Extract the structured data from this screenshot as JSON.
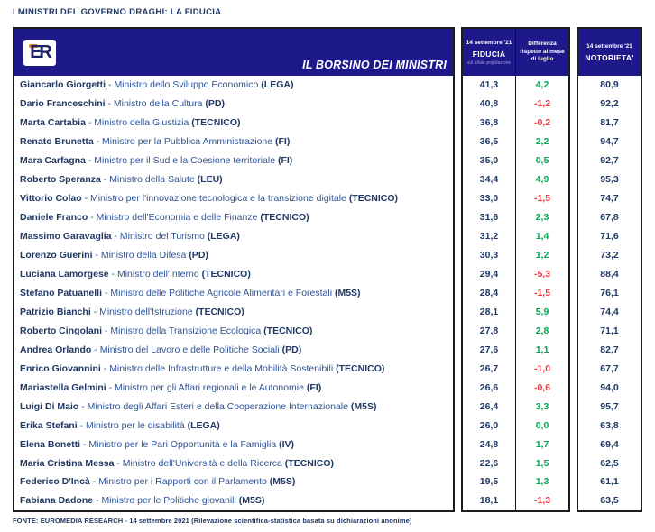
{
  "title": "I MINISTRI DEL GOVERNO DRAGHI: LA FIDUCIA",
  "header": {
    "logo_text": "ER",
    "banner_label": "IL BORSINO DEI MINISTRI",
    "fiducia_date": "14 settembre '21",
    "fiducia_label": "FIDUCIA",
    "fiducia_sub": "sul totale popolazione",
    "differenza_label": "Differenza rispetto al mese di luglio",
    "notorieta_date": "14 settembre '21",
    "notorieta_label": "NOTORIETA'"
  },
  "footer": "FONTE: EUROMEDIA RESEARCH - 14 settembre 2021 (Rilevazione scientifica-statistica basata su dichiarazioni anonime)",
  "colors": {
    "navy_header": "#1E198B",
    "text_dark": "#1F3864",
    "text_role": "#2E5496",
    "positive_green": "#00A650",
    "negative_red": "#EE3D45",
    "logo_orange": "#E87722",
    "border": "#1c1c1c"
  },
  "chart_data": {
    "type": "table",
    "title": "I MINISTRI DEL GOVERNO DRAGHI: LA FIDUCIA",
    "columns": [
      "Ministro",
      "14 settembre '21 FIDUCIA sul totale popolazione",
      "Differenza rispetto al mese di luglio",
      "14 settembre '21 NOTORIETA'"
    ],
    "rows": [
      {
        "name": "Giancarlo Giorgetti",
        "role": "Ministro dello Sviluppo Economico",
        "party": "LEGA",
        "fiducia": "41,3",
        "differenza": "4,2",
        "notorieta": "80,9"
      },
      {
        "name": "Dario Franceschini",
        "role": "Ministro della Cultura",
        "party": "PD",
        "fiducia": "40,8",
        "differenza": "-1,2",
        "notorieta": "92,2"
      },
      {
        "name": "Marta Cartabia",
        "role": "Ministro della Giustizia",
        "party": "TECNICO",
        "fiducia": "36,8",
        "differenza": "-0,2",
        "notorieta": "81,7"
      },
      {
        "name": "Renato Brunetta",
        "role": "Ministro per la Pubblica Amministrazione",
        "party": "FI",
        "fiducia": "36,5",
        "differenza": "2,2",
        "notorieta": "94,7"
      },
      {
        "name": "Mara Carfagna",
        "role": "Ministro per il Sud e la Coesione territoriale",
        "party": "FI",
        "fiducia": "35,0",
        "differenza": "0,5",
        "notorieta": "92,7"
      },
      {
        "name": "Roberto Speranza",
        "role": "Ministro della Salute",
        "party": "LEU",
        "fiducia": "34,4",
        "differenza": "4,9",
        "notorieta": "95,3"
      },
      {
        "name": "Vittorio Colao",
        "role": "Ministro per l'innovazione tecnologica e la transizione digitale",
        "party": "TECNICO",
        "fiducia": "33,0",
        "differenza": "-1,5",
        "notorieta": "74,7"
      },
      {
        "name": "Daniele Franco",
        "role": "Ministro dell'Economia e delle Finanze",
        "party": "TECNICO",
        "fiducia": "31,6",
        "differenza": "2,3",
        "notorieta": "67,8"
      },
      {
        "name": "Massimo Garavaglia",
        "role": "Ministro del Turismo",
        "party": "LEGA",
        "fiducia": "31,2",
        "differenza": "1,4",
        "notorieta": "71,6"
      },
      {
        "name": "Lorenzo Guerini",
        "role": "Ministro della Difesa",
        "party": "PD",
        "fiducia": "30,3",
        "differenza": "1,2",
        "notorieta": "73,2"
      },
      {
        "name": "Luciana Lamorgese",
        "role": "Ministro dell'Interno",
        "party": "TECNICO",
        "fiducia": "29,4",
        "differenza": "-5,3",
        "notorieta": "88,4"
      },
      {
        "name": "Stefano Patuanelli",
        "role": "Ministro delle Politiche Agricole Alimentari e Forestali",
        "party": "M5S",
        "fiducia": "28,4",
        "differenza": "-1,5",
        "notorieta": "76,1"
      },
      {
        "name": "Patrizio Bianchi",
        "role": "Ministro dell'Istruzione",
        "party": "TECNICO",
        "fiducia": "28,1",
        "differenza": "5,9",
        "notorieta": "74,4"
      },
      {
        "name": "Roberto Cingolani",
        "role": "Ministro della Transizione Ecologica",
        "party": "TECNICO",
        "fiducia": "27,8",
        "differenza": "2,8",
        "notorieta": "71,1"
      },
      {
        "name": "Andrea Orlando",
        "role": "Ministro del Lavoro e delle Politiche Sociali",
        "party": "PD",
        "fiducia": "27,6",
        "differenza": "1,1",
        "notorieta": "82,7"
      },
      {
        "name": "Enrico Giovannini",
        "role": "Ministro delle Infrastrutture e della Mobilità Sostenibili",
        "party": "TECNICO",
        "fiducia": "26,7",
        "differenza": "-1,0",
        "notorieta": "67,7"
      },
      {
        "name": "Mariastella Gelmini",
        "role": "Ministro per gli Affari regionali e le Autonomie",
        "party": "FI",
        "fiducia": "26,6",
        "differenza": "-0,6",
        "notorieta": "94,0"
      },
      {
        "name": "Luigi Di Maio",
        "role": "Ministro degli Affari Esteri e della Cooperazione Internazionale",
        "party": "M5S",
        "fiducia": "26,4",
        "differenza": "3,3",
        "notorieta": "95,7"
      },
      {
        "name": "Erika Stefani",
        "role": "Ministro per le disabilità",
        "party": "LEGA",
        "fiducia": "26,0",
        "differenza": "0,0",
        "notorieta": "63,8"
      },
      {
        "name": "Elena Bonetti",
        "role": "Ministro per le Pari Opportunità e la Famiglia",
        "party": "IV",
        "fiducia": "24,8",
        "differenza": "1,7",
        "notorieta": "69,4"
      },
      {
        "name": "Maria Cristina Messa",
        "role": "Ministro dell'Università e della Ricerca",
        "party": "TECNICO",
        "fiducia": "22,6",
        "differenza": "1,5",
        "notorieta": "62,5"
      },
      {
        "name": "Federico D'Incà",
        "role": "Ministro per i Rapporti con il Parlamento",
        "party": "M5S",
        "fiducia": "19,5",
        "differenza": "1,3",
        "notorieta": "61,1"
      },
      {
        "name": "Fabiana Dadone",
        "role": "Ministro per le Politiche giovanili",
        "party": "M5S",
        "fiducia": "18,1",
        "differenza": "-1,3",
        "notorieta": "63,5"
      }
    ]
  }
}
